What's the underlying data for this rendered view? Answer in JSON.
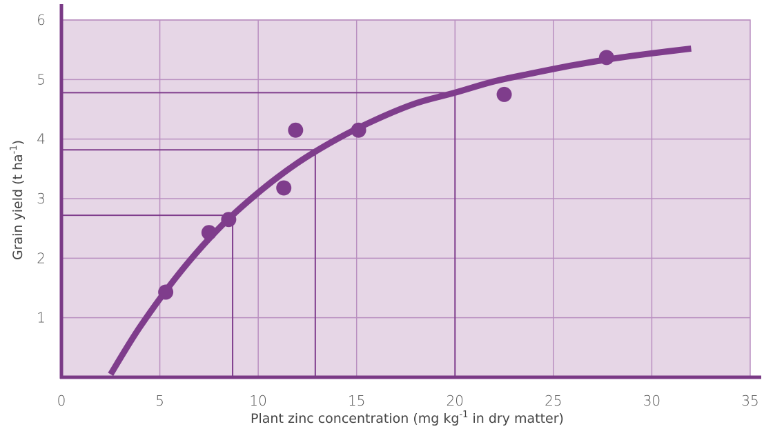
{
  "colors": {
    "plot_bg": "#e6d6e6",
    "grid": "#b98fc0",
    "axis": "#7a3a86",
    "curve": "#7f3d8c",
    "point": "#7f3d8c",
    "guide": "#7f3d8c",
    "tick_text": "#555555"
  },
  "chart_data": {
    "type": "scatter",
    "xlabel": {
      "pre": "Plant zinc concentration (mg kg",
      "sup": "-1",
      "post": " in dry matter)"
    },
    "ylabel": {
      "pre": "Grain yield (t ha",
      "sup": "-1",
      "post": ")"
    },
    "xlim": [
      0,
      35
    ],
    "ylim": [
      0,
      6
    ],
    "x_ticks": [
      0,
      5,
      10,
      15,
      20,
      25,
      30,
      35
    ],
    "y_ticks": [
      1,
      2,
      3,
      4,
      5,
      6
    ],
    "grid": true,
    "points": [
      {
        "x": 5.3,
        "y": 1.43
      },
      {
        "x": 7.5,
        "y": 2.43
      },
      {
        "x": 8.5,
        "y": 2.65
      },
      {
        "x": 11.3,
        "y": 3.18
      },
      {
        "x": 11.9,
        "y": 4.15
      },
      {
        "x": 15.1,
        "y": 4.15
      },
      {
        "x": 22.5,
        "y": 4.75
      },
      {
        "x": 27.7,
        "y": 5.37
      }
    ],
    "fit_curve": {
      "type": "line",
      "x": [
        2.5,
        4,
        6,
        8,
        10,
        12,
        14,
        16,
        18,
        20,
        22,
        24,
        26,
        28,
        30,
        32
      ],
      "y": [
        0.05,
        0.85,
        1.75,
        2.5,
        3.1,
        3.6,
        4.0,
        4.33,
        4.6,
        4.78,
        4.97,
        5.11,
        5.24,
        5.35,
        5.44,
        5.52
      ]
    },
    "guides": [
      {
        "x": 8.7,
        "y": 2.72
      },
      {
        "x": 12.9,
        "y": 3.82
      },
      {
        "x": 20.0,
        "y": 4.78
      }
    ]
  }
}
